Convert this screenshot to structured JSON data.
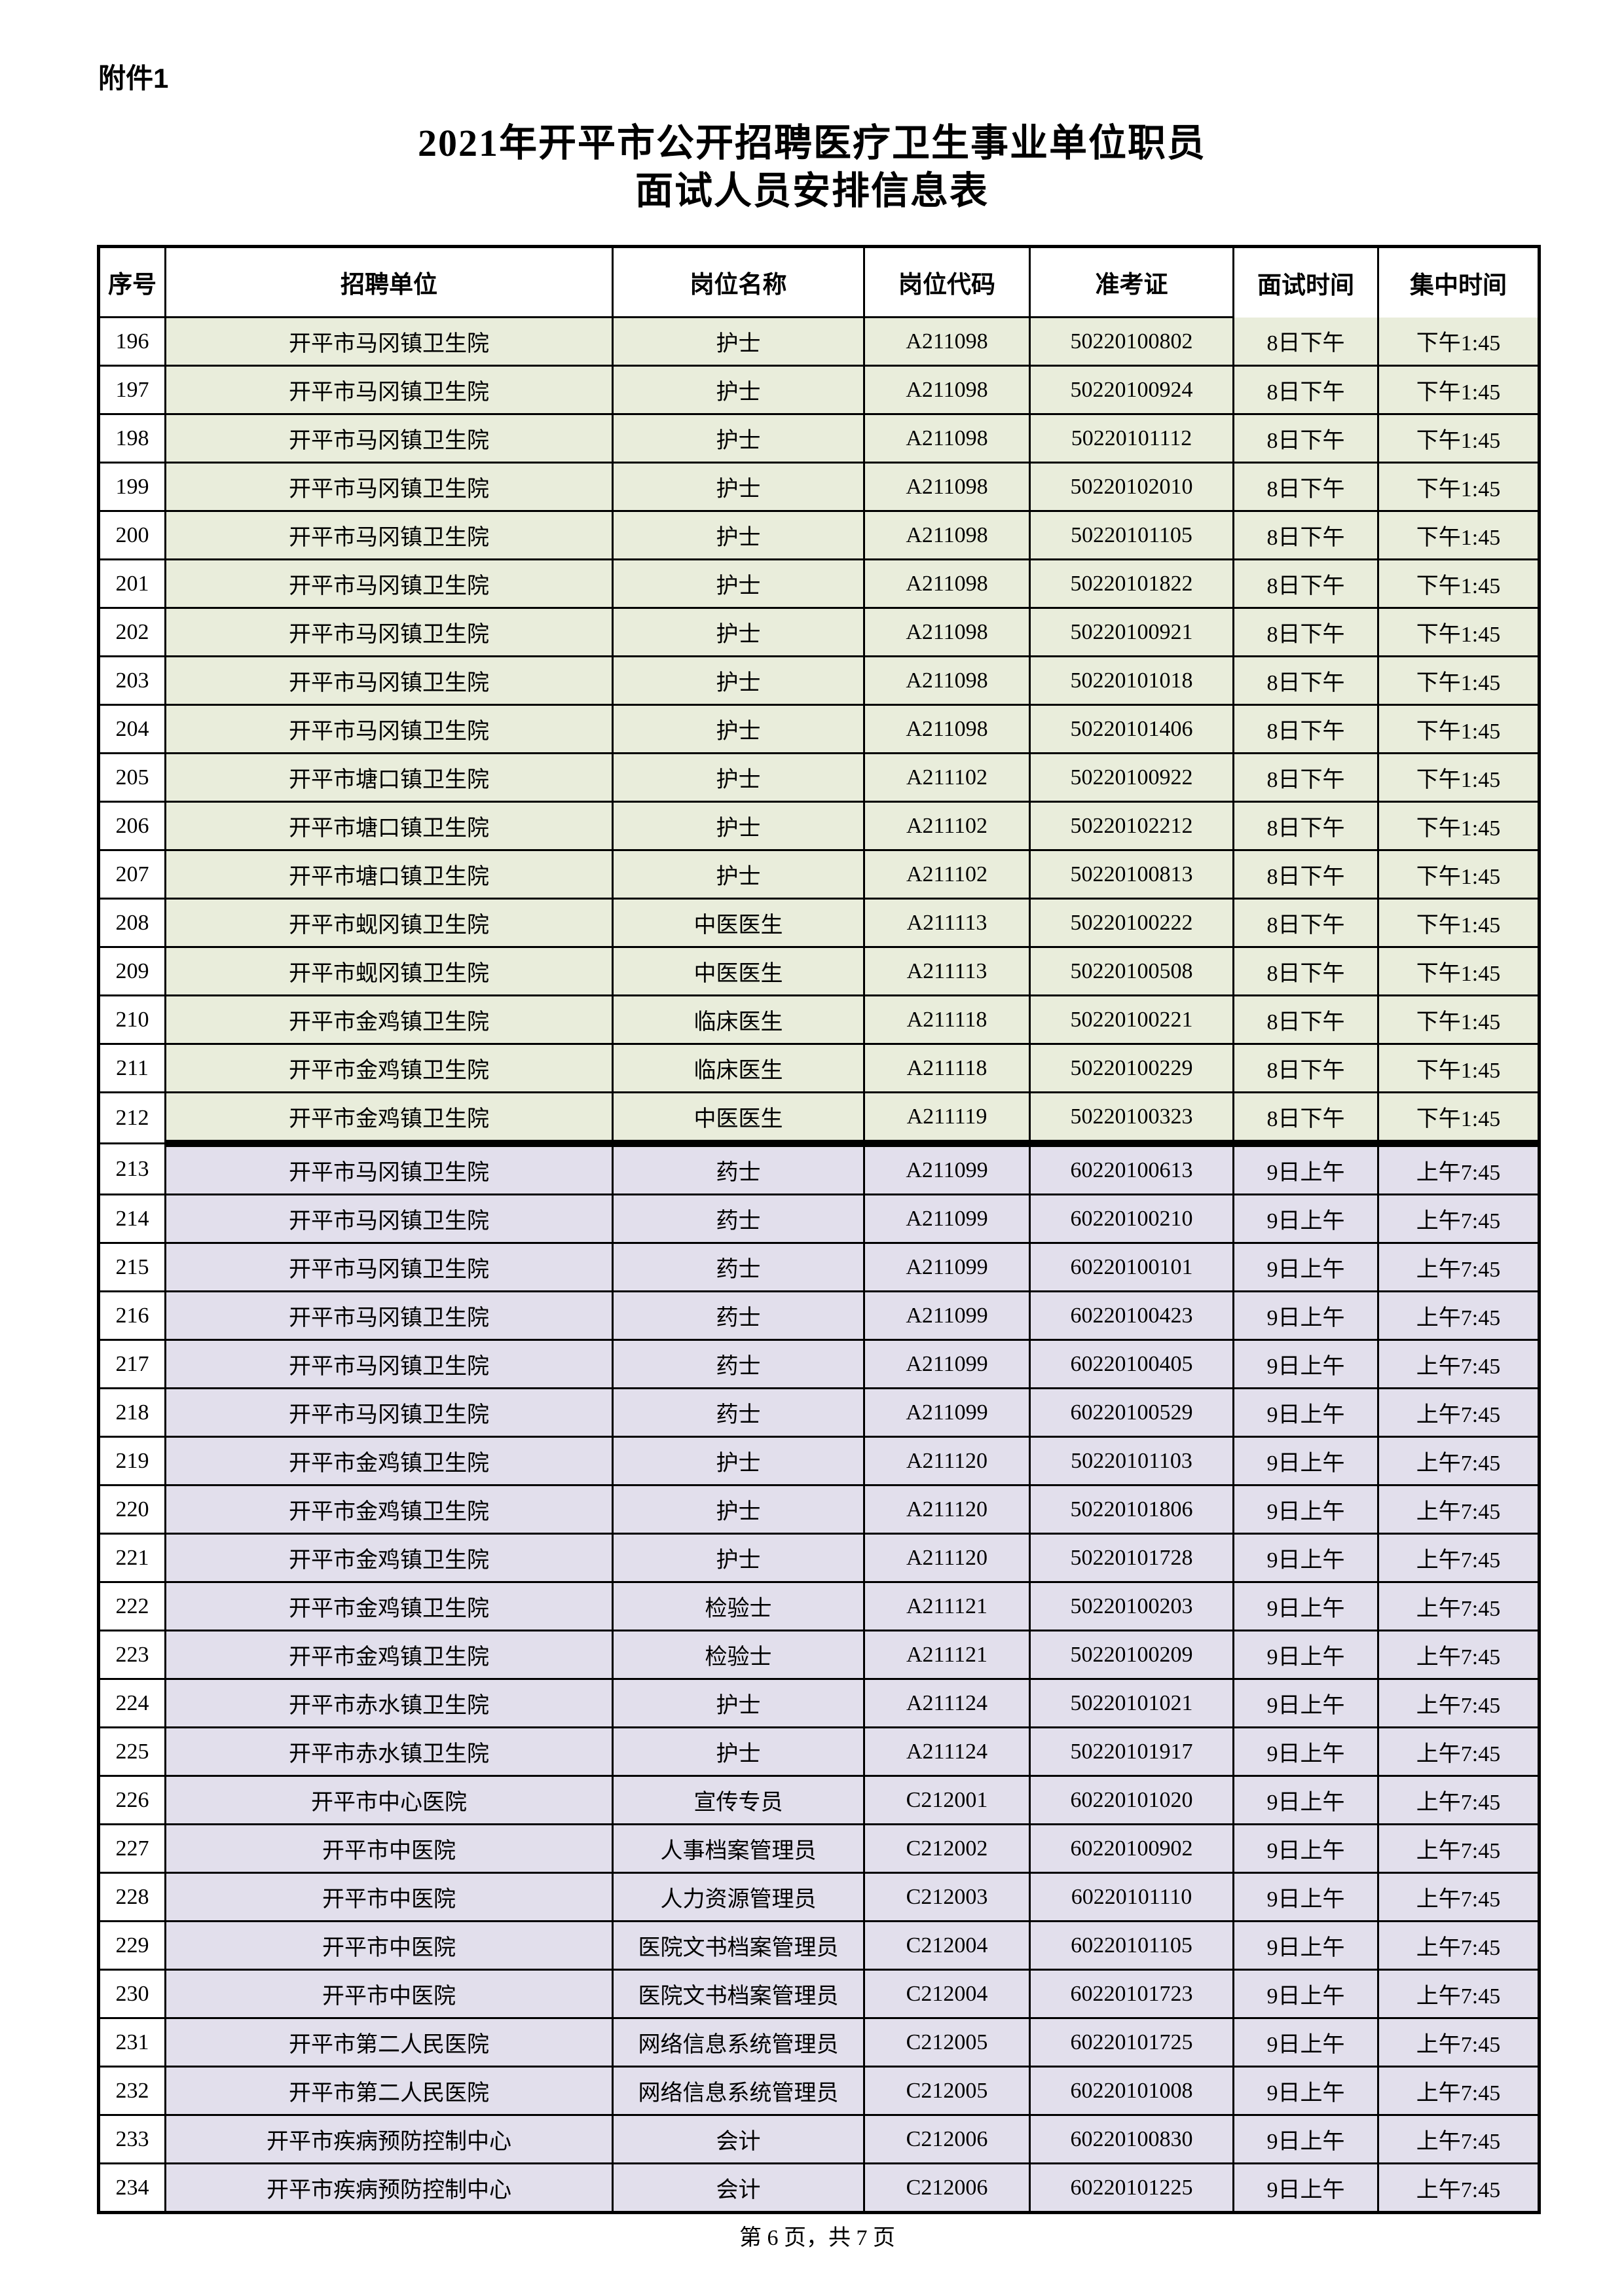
{
  "page": {
    "attachment_label": "附件1",
    "title_line1": "2021年开平市公开招聘医疗卫生事业单位职员",
    "title_line2": "面试人员安排信息表",
    "footer": "第 6 页，共 7 页"
  },
  "table": {
    "columns": [
      "序号",
      "招聘单位",
      "岗位名称",
      "岗位代码",
      "准考证",
      "面试时间",
      "集中时间"
    ],
    "section_colors": {
      "day8_afternoon": "#e9eddb",
      "day9_morning": "#e2dfec",
      "index_column": "#ffffff"
    },
    "rows": [
      {
        "no": "196",
        "unit": "开平市马冈镇卫生院",
        "position": "护士",
        "code": "A211098",
        "ticket": "50220100802",
        "interview": "8日下午",
        "assembly": "下午1:45",
        "section": "day8_afternoon"
      },
      {
        "no": "197",
        "unit": "开平市马冈镇卫生院",
        "position": "护士",
        "code": "A211098",
        "ticket": "50220100924",
        "interview": "8日下午",
        "assembly": "下午1:45",
        "section": "day8_afternoon"
      },
      {
        "no": "198",
        "unit": "开平市马冈镇卫生院",
        "position": "护士",
        "code": "A211098",
        "ticket": "50220101112",
        "interview": "8日下午",
        "assembly": "下午1:45",
        "section": "day8_afternoon"
      },
      {
        "no": "199",
        "unit": "开平市马冈镇卫生院",
        "position": "护士",
        "code": "A211098",
        "ticket": "50220102010",
        "interview": "8日下午",
        "assembly": "下午1:45",
        "section": "day8_afternoon"
      },
      {
        "no": "200",
        "unit": "开平市马冈镇卫生院",
        "position": "护士",
        "code": "A211098",
        "ticket": "50220101105",
        "interview": "8日下午",
        "assembly": "下午1:45",
        "section": "day8_afternoon"
      },
      {
        "no": "201",
        "unit": "开平市马冈镇卫生院",
        "position": "护士",
        "code": "A211098",
        "ticket": "50220101822",
        "interview": "8日下午",
        "assembly": "下午1:45",
        "section": "day8_afternoon"
      },
      {
        "no": "202",
        "unit": "开平市马冈镇卫生院",
        "position": "护士",
        "code": "A211098",
        "ticket": "50220100921",
        "interview": "8日下午",
        "assembly": "下午1:45",
        "section": "day8_afternoon"
      },
      {
        "no": "203",
        "unit": "开平市马冈镇卫生院",
        "position": "护士",
        "code": "A211098",
        "ticket": "50220101018",
        "interview": "8日下午",
        "assembly": "下午1:45",
        "section": "day8_afternoon"
      },
      {
        "no": "204",
        "unit": "开平市马冈镇卫生院",
        "position": "护士",
        "code": "A211098",
        "ticket": "50220101406",
        "interview": "8日下午",
        "assembly": "下午1:45",
        "section": "day8_afternoon"
      },
      {
        "no": "205",
        "unit": "开平市塘口镇卫生院",
        "position": "护士",
        "code": "A211102",
        "ticket": "50220100922",
        "interview": "8日下午",
        "assembly": "下午1:45",
        "section": "day8_afternoon"
      },
      {
        "no": "206",
        "unit": "开平市塘口镇卫生院",
        "position": "护士",
        "code": "A211102",
        "ticket": "50220102212",
        "interview": "8日下午",
        "assembly": "下午1:45",
        "section": "day8_afternoon"
      },
      {
        "no": "207",
        "unit": "开平市塘口镇卫生院",
        "position": "护士",
        "code": "A211102",
        "ticket": "50220100813",
        "interview": "8日下午",
        "assembly": "下午1:45",
        "section": "day8_afternoon"
      },
      {
        "no": "208",
        "unit": "开平市蚬冈镇卫生院",
        "position": "中医医生",
        "code": "A211113",
        "ticket": "50220100222",
        "interview": "8日下午",
        "assembly": "下午1:45",
        "section": "day8_afternoon"
      },
      {
        "no": "209",
        "unit": "开平市蚬冈镇卫生院",
        "position": "中医医生",
        "code": "A211113",
        "ticket": "50220100508",
        "interview": "8日下午",
        "assembly": "下午1:45",
        "section": "day8_afternoon"
      },
      {
        "no": "210",
        "unit": "开平市金鸡镇卫生院",
        "position": "临床医生",
        "code": "A211118",
        "ticket": "50220100221",
        "interview": "8日下午",
        "assembly": "下午1:45",
        "section": "day8_afternoon"
      },
      {
        "no": "211",
        "unit": "开平市金鸡镇卫生院",
        "position": "临床医生",
        "code": "A211118",
        "ticket": "50220100229",
        "interview": "8日下午",
        "assembly": "下午1:45",
        "section": "day8_afternoon"
      },
      {
        "no": "212",
        "unit": "开平市金鸡镇卫生院",
        "position": "中医医生",
        "code": "A211119",
        "ticket": "50220100323",
        "interview": "8日下午",
        "assembly": "下午1:45",
        "section": "day8_afternoon"
      },
      {
        "no": "213",
        "unit": "开平市马冈镇卫生院",
        "position": "药士",
        "code": "A211099",
        "ticket": "60220100613",
        "interview": "9日上午",
        "assembly": "上午7:45",
        "section": "day9_morning"
      },
      {
        "no": "214",
        "unit": "开平市马冈镇卫生院",
        "position": "药士",
        "code": "A211099",
        "ticket": "60220100210",
        "interview": "9日上午",
        "assembly": "上午7:45",
        "section": "day9_morning"
      },
      {
        "no": "215",
        "unit": "开平市马冈镇卫生院",
        "position": "药士",
        "code": "A211099",
        "ticket": "60220100101",
        "interview": "9日上午",
        "assembly": "上午7:45",
        "section": "day9_morning"
      },
      {
        "no": "216",
        "unit": "开平市马冈镇卫生院",
        "position": "药士",
        "code": "A211099",
        "ticket": "60220100423",
        "interview": "9日上午",
        "assembly": "上午7:45",
        "section": "day9_morning"
      },
      {
        "no": "217",
        "unit": "开平市马冈镇卫生院",
        "position": "药士",
        "code": "A211099",
        "ticket": "60220100405",
        "interview": "9日上午",
        "assembly": "上午7:45",
        "section": "day9_morning"
      },
      {
        "no": "218",
        "unit": "开平市马冈镇卫生院",
        "position": "药士",
        "code": "A211099",
        "ticket": "60220100529",
        "interview": "9日上午",
        "assembly": "上午7:45",
        "section": "day9_morning"
      },
      {
        "no": "219",
        "unit": "开平市金鸡镇卫生院",
        "position": "护士",
        "code": "A211120",
        "ticket": "50220101103",
        "interview": "9日上午",
        "assembly": "上午7:45",
        "section": "day9_morning"
      },
      {
        "no": "220",
        "unit": "开平市金鸡镇卫生院",
        "position": "护士",
        "code": "A211120",
        "ticket": "50220101806",
        "interview": "9日上午",
        "assembly": "上午7:45",
        "section": "day9_morning"
      },
      {
        "no": "221",
        "unit": "开平市金鸡镇卫生院",
        "position": "护士",
        "code": "A211120",
        "ticket": "50220101728",
        "interview": "9日上午",
        "assembly": "上午7:45",
        "section": "day9_morning"
      },
      {
        "no": "222",
        "unit": "开平市金鸡镇卫生院",
        "position": "检验士",
        "code": "A211121",
        "ticket": "50220100203",
        "interview": "9日上午",
        "assembly": "上午7:45",
        "section": "day9_morning"
      },
      {
        "no": "223",
        "unit": "开平市金鸡镇卫生院",
        "position": "检验士",
        "code": "A211121",
        "ticket": "50220100209",
        "interview": "9日上午",
        "assembly": "上午7:45",
        "section": "day9_morning"
      },
      {
        "no": "224",
        "unit": "开平市赤水镇卫生院",
        "position": "护士",
        "code": "A211124",
        "ticket": "50220101021",
        "interview": "9日上午",
        "assembly": "上午7:45",
        "section": "day9_morning"
      },
      {
        "no": "225",
        "unit": "开平市赤水镇卫生院",
        "position": "护士",
        "code": "A211124",
        "ticket": "50220101917",
        "interview": "9日上午",
        "assembly": "上午7:45",
        "section": "day9_morning"
      },
      {
        "no": "226",
        "unit": "开平市中心医院",
        "position": "宣传专员",
        "code": "C212001",
        "ticket": "60220101020",
        "interview": "9日上午",
        "assembly": "上午7:45",
        "section": "day9_morning"
      },
      {
        "no": "227",
        "unit": "开平市中医院",
        "position": "人事档案管理员",
        "code": "C212002",
        "ticket": "60220100902",
        "interview": "9日上午",
        "assembly": "上午7:45",
        "section": "day9_morning"
      },
      {
        "no": "228",
        "unit": "开平市中医院",
        "position": "人力资源管理员",
        "code": "C212003",
        "ticket": "60220101110",
        "interview": "9日上午",
        "assembly": "上午7:45",
        "section": "day9_morning"
      },
      {
        "no": "229",
        "unit": "开平市中医院",
        "position": "医院文书档案管理员",
        "code": "C212004",
        "ticket": "60220101105",
        "interview": "9日上午",
        "assembly": "上午7:45",
        "section": "day9_morning"
      },
      {
        "no": "230",
        "unit": "开平市中医院",
        "position": "医院文书档案管理员",
        "code": "C212004",
        "ticket": "60220101723",
        "interview": "9日上午",
        "assembly": "上午7:45",
        "section": "day9_morning"
      },
      {
        "no": "231",
        "unit": "开平市第二人民医院",
        "position": "网络信息系统管理员",
        "code": "C212005",
        "ticket": "60220101725",
        "interview": "9日上午",
        "assembly": "上午7:45",
        "section": "day9_morning"
      },
      {
        "no": "232",
        "unit": "开平市第二人民医院",
        "position": "网络信息系统管理员",
        "code": "C212005",
        "ticket": "60220101008",
        "interview": "9日上午",
        "assembly": "上午7:45",
        "section": "day9_morning"
      },
      {
        "no": "233",
        "unit": "开平市疾病预防控制中心",
        "position": "会计",
        "code": "C212006",
        "ticket": "60220100830",
        "interview": "9日上午",
        "assembly": "上午7:45",
        "section": "day9_morning"
      },
      {
        "no": "234",
        "unit": "开平市疾病预防控制中心",
        "position": "会计",
        "code": "C212006",
        "ticket": "60220101225",
        "interview": "9日上午",
        "assembly": "上午7:45",
        "section": "day9_morning"
      }
    ]
  }
}
